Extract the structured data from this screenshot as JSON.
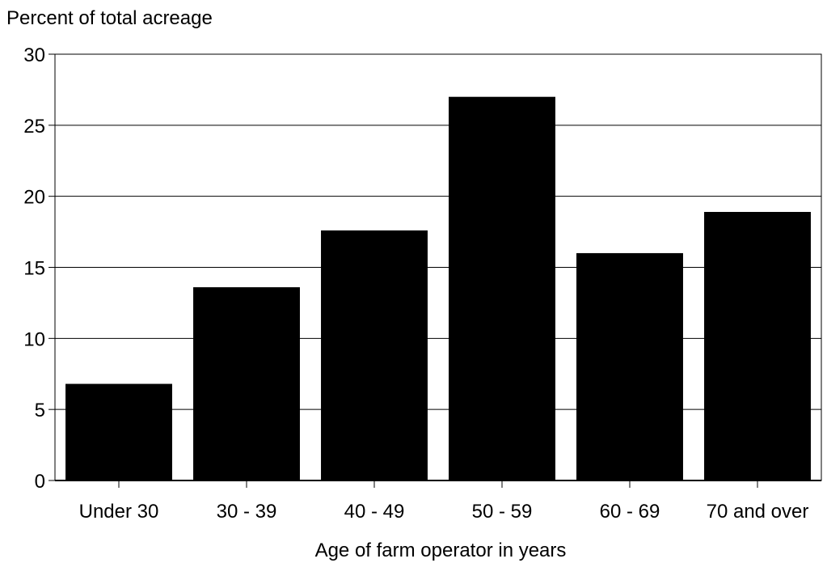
{
  "chart_data": {
    "type": "bar",
    "title": "",
    "ylabel": "Percent of total acreage",
    "xlabel": "Age of farm operator in years",
    "categories": [
      "Under 30",
      "30 - 39",
      "40 - 49",
      "50 - 59",
      "60 - 69",
      "70 and over"
    ],
    "values": [
      6.8,
      13.6,
      17.6,
      27.0,
      16.0,
      18.9
    ],
    "ylim": [
      0,
      30
    ],
    "yticks": [
      0,
      5,
      10,
      15,
      20,
      25,
      30
    ],
    "grid": true,
    "legend": "none",
    "colors": {
      "bar": "#000000",
      "grid": "#000000",
      "background": "#ffffff"
    }
  }
}
